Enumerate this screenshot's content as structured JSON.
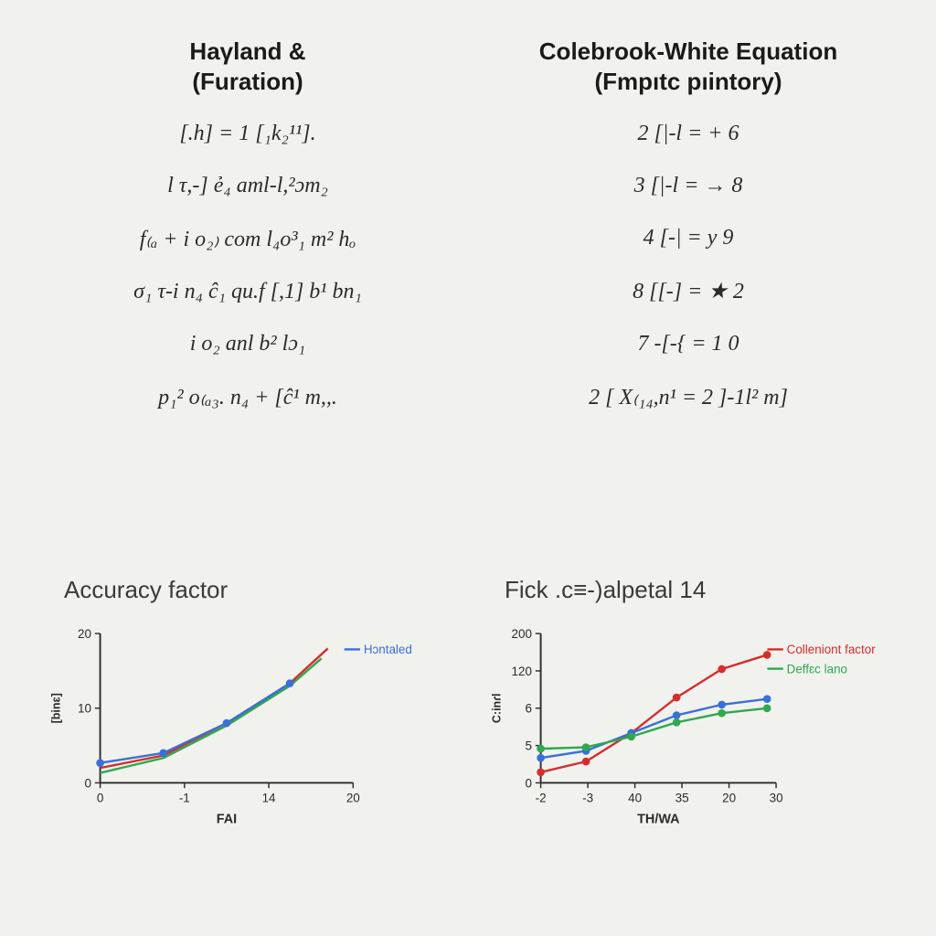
{
  "left": {
    "title_line1": "Haγland &",
    "title_line2": "(Furation)",
    "equations": [
      "[.h] = 1 [₁k₂¹¹].",
      "l τ,-] ẻ₄ aml-l,²ɔm₂",
      "f₍ₐ + i o₂₎ com l₄o³₁ m² hₒ",
      "σ₁ τ-i n₄ ĉ₁ qu.f [,1] b¹ bn₁",
      "i o₂ anl b² lɔ₁",
      "p₁² o₍ₐ₃. n₄ + [ĉ¹ m,,."
    ]
  },
  "right": {
    "title_line1": "Colebrook-White Equation",
    "title_line2": "(Fmpıtc pıintory)",
    "equations": [
      "2 [|-l = + 6",
      "3 [|-l = → 8",
      "4 [-| = y 9",
      "8 [[-] = ★ 2",
      "7 -[-{ = 1 0",
      "2 [ X₍₁₄,n¹ = 2 ]-1l² m]"
    ]
  },
  "chart_left": {
    "title": "Accuracy factor",
    "type": "line",
    "x_label": "FAI",
    "y_label": "[binɛ]",
    "x_ticks": [
      "0",
      "-1",
      "14",
      "20"
    ],
    "y_ticks": [
      "0",
      "10",
      "20"
    ],
    "series": [
      {
        "name": "red",
        "color": "#d62c2c",
        "points": [
          [
            0,
            -2
          ],
          [
            1,
            0.5
          ],
          [
            2,
            7
          ],
          [
            3,
            15
          ],
          [
            3.6,
            22
          ]
        ]
      },
      {
        "name": "green",
        "color": "#2fa84f",
        "points": [
          [
            0,
            -3
          ],
          [
            1,
            0
          ],
          [
            2,
            6.5
          ],
          [
            3,
            14.5
          ],
          [
            3.5,
            20
          ]
        ]
      },
      {
        "name": "blue",
        "color": "#3a6fd8",
        "points": [
          [
            0,
            -1
          ],
          [
            1,
            1
          ],
          [
            2,
            7
          ],
          [
            3,
            15
          ]
        ],
        "markers": true
      }
    ],
    "legend": [
      {
        "label": "Hɔntaled",
        "color": "#3a6fd8"
      }
    ],
    "xlim": [
      0,
      4
    ],
    "ylim": [
      -5,
      25
    ],
    "background": "#f1f2ee",
    "axis_color": "#2b2b2b"
  },
  "chart_right": {
    "title": "Fick .ϲ≡-)alpetal 14",
    "type": "line",
    "x_label": "TH/WA",
    "y_label": "C:inɾl",
    "x_ticks": [
      "-2",
      "-3",
      "40",
      "35",
      "20",
      "30"
    ],
    "y_ticks": [
      "0",
      "5",
      "6",
      "120",
      "200"
    ],
    "series": [
      {
        "name": "red",
        "color": "#d62c2c",
        "label": "Colleniont factor",
        "points": [
          [
            0,
            15
          ],
          [
            1,
            30
          ],
          [
            2,
            70
          ],
          [
            3,
            120
          ],
          [
            4,
            160
          ],
          [
            5,
            180
          ]
        ],
        "markers": true
      },
      {
        "name": "blue",
        "color": "#3a6fd8",
        "points": [
          [
            0,
            35
          ],
          [
            1,
            45
          ],
          [
            2,
            70
          ],
          [
            3,
            95
          ],
          [
            4,
            110
          ],
          [
            5,
            118
          ]
        ],
        "markers": true
      },
      {
        "name": "green",
        "color": "#2fa84f",
        "label": "Deffɛc lano",
        "points": [
          [
            0,
            48
          ],
          [
            1,
            50
          ],
          [
            2,
            65
          ],
          [
            3,
            85
          ],
          [
            4,
            98
          ],
          [
            5,
            105
          ]
        ],
        "markers": true
      }
    ],
    "legend": [
      {
        "label": "Colleniont factor",
        "color": "#d62c2c"
      },
      {
        "label": "Deffɛc lano",
        "color": "#2fa84f"
      }
    ],
    "xlim": [
      0,
      5.2
    ],
    "ylim": [
      0,
      210
    ],
    "background": "#f1f2ee",
    "axis_color": "#2b2b2b"
  },
  "style": {
    "bg": "#f1f2ee",
    "title_font": "Arial",
    "title_size_pt": 20,
    "eq_font": "Georgia",
    "eq_size_pt": 18
  }
}
